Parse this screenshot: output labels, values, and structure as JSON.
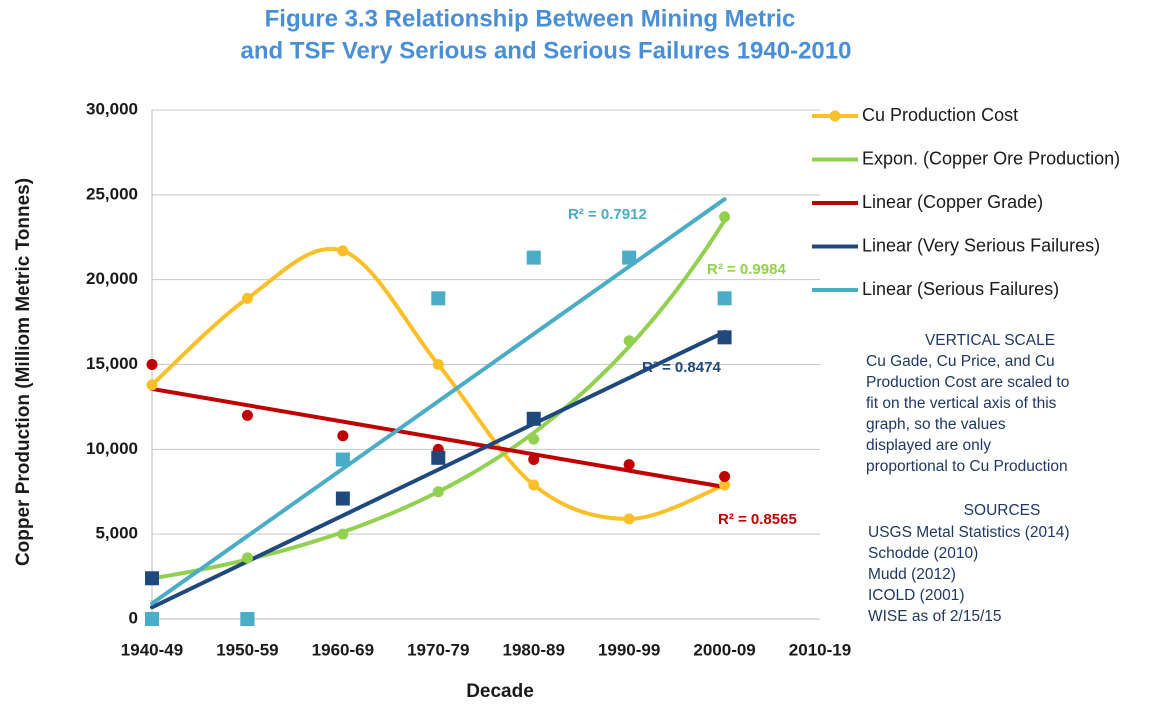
{
  "chart_data": {
    "type": "line",
    "title": "Figure 3.3  Relationship Between Mining Metric",
    "subtitle": "and TSF Very Serious and Serious Failures 1940-2010",
    "x_label": "Decade",
    "y_label": "Copper Production (Milliom Metric Tonnes)",
    "categories": [
      "1940-49",
      "1950-59",
      "1960-69",
      "1970-79",
      "1980-89",
      "1990-99",
      "2000-09",
      "2010-19"
    ],
    "ylim": [
      0,
      30000
    ],
    "yticks": [
      0,
      {
        "value": 5000,
        "label": "5,000"
      },
      {
        "value": 10000,
        "label": "10,000"
      },
      {
        "value": 15000,
        "label": "15,000"
      },
      {
        "value": 20000,
        "label": "20,000"
      },
      {
        "value": 25000,
        "label": "25,000"
      },
      {
        "value": 30000,
        "label": "30,000"
      }
    ],
    "grid": true,
    "legend": "right",
    "series": [
      {
        "name": "Cu Production Cost",
        "color": "#fbbf2a",
        "marker": "circle",
        "line": "smooth",
        "values": [
          13800,
          18900,
          21700,
          15000,
          7900,
          5900,
          7900,
          null
        ]
      },
      {
        "name": "Expon. (Copper Ore Production)",
        "color": "#92d050",
        "marker": "circle",
        "trendline": "exponential",
        "r2_label": "R² = 0.9984",
        "values": [
          2400,
          3600,
          5000,
          7500,
          10600,
          16400,
          23700,
          null
        ]
      },
      {
        "name": "Linear (Copper Grade)",
        "color": "#c00000",
        "marker": "circle",
        "trendline": "linear",
        "r2_label": "R² = 0.8565",
        "values": [
          15000,
          12000,
          10800,
          10000,
          9400,
          9100,
          8400,
          null
        ]
      },
      {
        "name": "Linear (Very Serious Failures)",
        "color": "#1f497d",
        "marker": "square",
        "trendline": "linear",
        "r2_label": "R² = 0.8474",
        "values": [
          2400,
          0,
          7100,
          9500,
          11800,
          null,
          16600,
          null
        ]
      },
      {
        "name": "Linear (Serious Failures)",
        "color": "#4bacc6",
        "marker": "square",
        "trendline": "linear",
        "r2_label": "R² = 0.7912",
        "values": [
          0,
          0,
          9400,
          18900,
          21300,
          21300,
          18900,
          null
        ]
      }
    ],
    "note_heading": "VERTICAL SCALE",
    "note_lines": [
      "Cu Gade, Cu Price, and Cu",
      "Production Cost are scaled to",
      "fit on the vertical axis of this",
      "graph, so the values",
      "displayed are only",
      "proportional to Cu Production"
    ],
    "sources_heading": "SOURCES",
    "sources": [
      "USGS  Metal Statistics (2014)",
      "Schodde (2010)",
      "Mudd (2012)",
      "ICOLD (2001)",
      "WISE as of 2/15/15"
    ]
  }
}
